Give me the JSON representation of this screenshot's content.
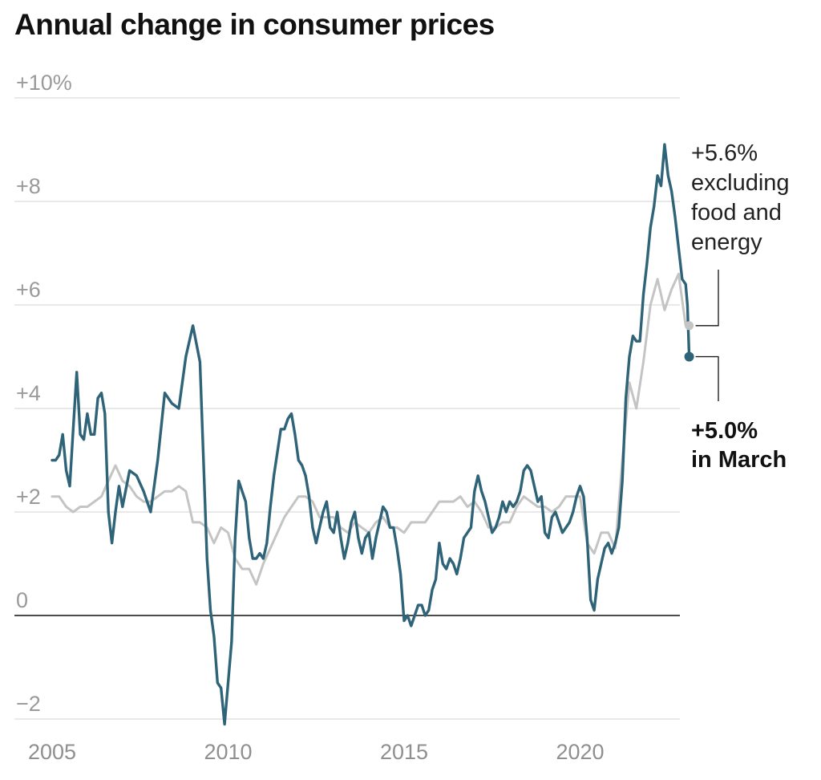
{
  "chart_data": {
    "type": "line",
    "title": "Annual change in consumer prices",
    "xlabel": "",
    "ylabel": "",
    "xlim": [
      2005.0,
      2023.25
    ],
    "ylim": [
      -2,
      10
    ],
    "grid": true,
    "y_ticks": [
      {
        "value": 10,
        "label": "+10%"
      },
      {
        "value": 8,
        "label": "+8"
      },
      {
        "value": 6,
        "label": "+6"
      },
      {
        "value": 4,
        "label": "+4"
      },
      {
        "value": 2,
        "label": "+2"
      },
      {
        "value": 0,
        "label": "0"
      },
      {
        "value": -2,
        "label": "−2"
      }
    ],
    "x_ticks": [
      {
        "value": 2005,
        "label": "2005"
      },
      {
        "value": 2010,
        "label": "2010"
      },
      {
        "value": 2015,
        "label": "2015"
      },
      {
        "value": 2020,
        "label": "2020"
      }
    ],
    "series": [
      {
        "name": "excluding food and energy",
        "color": "#c4c4c4",
        "end_label_value": "+5.6%",
        "end_label_text": [
          "excluding",
          "food and",
          "energy"
        ],
        "points": [
          [
            2005.0,
            2.3
          ],
          [
            2005.2,
            2.3
          ],
          [
            2005.4,
            2.1
          ],
          [
            2005.6,
            2.0
          ],
          [
            2005.8,
            2.1
          ],
          [
            2006.0,
            2.1
          ],
          [
            2006.2,
            2.2
          ],
          [
            2006.4,
            2.3
          ],
          [
            2006.6,
            2.6
          ],
          [
            2006.8,
            2.9
          ],
          [
            2007.0,
            2.6
          ],
          [
            2007.2,
            2.5
          ],
          [
            2007.4,
            2.3
          ],
          [
            2007.6,
            2.2
          ],
          [
            2007.8,
            2.2
          ],
          [
            2008.0,
            2.3
          ],
          [
            2008.2,
            2.4
          ],
          [
            2008.4,
            2.4
          ],
          [
            2008.6,
            2.5
          ],
          [
            2008.8,
            2.4
          ],
          [
            2009.0,
            1.8
          ],
          [
            2009.2,
            1.8
          ],
          [
            2009.4,
            1.7
          ],
          [
            2009.6,
            1.4
          ],
          [
            2009.8,
            1.7
          ],
          [
            2010.0,
            1.6
          ],
          [
            2010.2,
            1.1
          ],
          [
            2010.4,
            0.9
          ],
          [
            2010.6,
            0.9
          ],
          [
            2010.8,
            0.6
          ],
          [
            2011.0,
            1.0
          ],
          [
            2011.2,
            1.3
          ],
          [
            2011.4,
            1.6
          ],
          [
            2011.6,
            1.9
          ],
          [
            2011.8,
            2.1
          ],
          [
            2012.0,
            2.3
          ],
          [
            2012.2,
            2.3
          ],
          [
            2012.4,
            2.2
          ],
          [
            2012.6,
            1.9
          ],
          [
            2012.8,
            1.9
          ],
          [
            2013.0,
            1.9
          ],
          [
            2013.2,
            1.7
          ],
          [
            2013.4,
            1.6
          ],
          [
            2013.6,
            1.8
          ],
          [
            2013.8,
            1.7
          ],
          [
            2014.0,
            1.6
          ],
          [
            2014.2,
            1.8
          ],
          [
            2014.4,
            1.9
          ],
          [
            2014.6,
            1.7
          ],
          [
            2014.8,
            1.7
          ],
          [
            2015.0,
            1.6
          ],
          [
            2015.2,
            1.8
          ],
          [
            2015.4,
            1.8
          ],
          [
            2015.6,
            1.8
          ],
          [
            2015.8,
            2.0
          ],
          [
            2016.0,
            2.2
          ],
          [
            2016.2,
            2.2
          ],
          [
            2016.4,
            2.2
          ],
          [
            2016.6,
            2.3
          ],
          [
            2016.8,
            2.1
          ],
          [
            2017.0,
            2.2
          ],
          [
            2017.2,
            2.0
          ],
          [
            2017.4,
            1.7
          ],
          [
            2017.6,
            1.7
          ],
          [
            2017.8,
            1.8
          ],
          [
            2018.0,
            1.8
          ],
          [
            2018.2,
            2.1
          ],
          [
            2018.4,
            2.3
          ],
          [
            2018.6,
            2.2
          ],
          [
            2018.8,
            2.1
          ],
          [
            2019.0,
            2.1
          ],
          [
            2019.2,
            2.0
          ],
          [
            2019.4,
            2.1
          ],
          [
            2019.6,
            2.3
          ],
          [
            2019.8,
            2.3
          ],
          [
            2020.0,
            2.3
          ],
          [
            2020.2,
            1.4
          ],
          [
            2020.4,
            1.2
          ],
          [
            2020.6,
            1.6
          ],
          [
            2020.8,
            1.6
          ],
          [
            2021.0,
            1.3
          ],
          [
            2021.2,
            3.0
          ],
          [
            2021.4,
            4.5
          ],
          [
            2021.6,
            4.0
          ],
          [
            2021.8,
            4.9
          ],
          [
            2022.0,
            6.0
          ],
          [
            2022.2,
            6.5
          ],
          [
            2022.4,
            5.9
          ],
          [
            2022.6,
            6.3
          ],
          [
            2022.8,
            6.6
          ],
          [
            2023.0,
            5.6
          ],
          [
            2023.1,
            5.6
          ]
        ]
      },
      {
        "name": "in March",
        "color": "#2e6378",
        "end_label_value": "+5.0%",
        "end_label_text": [
          "in March"
        ],
        "points": [
          [
            2005.0,
            3.0
          ],
          [
            2005.1,
            3.0
          ],
          [
            2005.2,
            3.1
          ],
          [
            2005.3,
            3.5
          ],
          [
            2005.4,
            2.8
          ],
          [
            2005.5,
            2.5
          ],
          [
            2005.6,
            3.6
          ],
          [
            2005.7,
            4.7
          ],
          [
            2005.8,
            3.5
          ],
          [
            2005.9,
            3.4
          ],
          [
            2006.0,
            3.9
          ],
          [
            2006.1,
            3.5
          ],
          [
            2006.2,
            3.5
          ],
          [
            2006.3,
            4.2
          ],
          [
            2006.4,
            4.3
          ],
          [
            2006.5,
            3.9
          ],
          [
            2006.6,
            2.0
          ],
          [
            2006.7,
            1.4
          ],
          [
            2006.8,
            2.0
          ],
          [
            2006.9,
            2.5
          ],
          [
            2007.0,
            2.1
          ],
          [
            2007.2,
            2.8
          ],
          [
            2007.4,
            2.7
          ],
          [
            2007.6,
            2.4
          ],
          [
            2007.8,
            2.0
          ],
          [
            2008.0,
            3.0
          ],
          [
            2008.2,
            4.3
          ],
          [
            2008.4,
            4.1
          ],
          [
            2008.6,
            4.0
          ],
          [
            2008.8,
            5.0
          ],
          [
            2009.0,
            5.6
          ],
          [
            2009.2,
            4.9
          ],
          [
            2009.4,
            1.1
          ],
          [
            2009.5,
            0.1
          ],
          [
            2009.6,
            -0.4
          ],
          [
            2009.7,
            -1.3
          ],
          [
            2009.8,
            -1.4
          ],
          [
            2009.9,
            -2.1
          ],
          [
            2010.0,
            -1.3
          ],
          [
            2010.1,
            -0.5
          ],
          [
            2010.2,
            1.5
          ],
          [
            2010.3,
            2.6
          ],
          [
            2010.5,
            2.2
          ],
          [
            2010.6,
            1.5
          ],
          [
            2010.7,
            1.1
          ],
          [
            2010.8,
            1.1
          ],
          [
            2010.9,
            1.2
          ],
          [
            2011.0,
            1.1
          ],
          [
            2011.1,
            1.4
          ],
          [
            2011.2,
            2.1
          ],
          [
            2011.3,
            2.7
          ],
          [
            2011.5,
            3.6
          ],
          [
            2011.6,
            3.6
          ],
          [
            2011.7,
            3.8
          ],
          [
            2011.8,
            3.9
          ],
          [
            2011.9,
            3.5
          ],
          [
            2012.0,
            3.0
          ],
          [
            2012.1,
            2.9
          ],
          [
            2012.2,
            2.7
          ],
          [
            2012.3,
            2.3
          ],
          [
            2012.4,
            1.7
          ],
          [
            2012.5,
            1.4
          ],
          [
            2012.6,
            1.7
          ],
          [
            2012.7,
            2.0
          ],
          [
            2012.8,
            2.2
          ],
          [
            2012.9,
            1.7
          ],
          [
            2013.0,
            1.6
          ],
          [
            2013.1,
            2.0
          ],
          [
            2013.2,
            1.5
          ],
          [
            2013.3,
            1.1
          ],
          [
            2013.4,
            1.4
          ],
          [
            2013.5,
            1.8
          ],
          [
            2013.6,
            2.0
          ],
          [
            2013.7,
            1.5
          ],
          [
            2013.8,
            1.2
          ],
          [
            2013.9,
            1.5
          ],
          [
            2014.0,
            1.6
          ],
          [
            2014.1,
            1.1
          ],
          [
            2014.2,
            1.5
          ],
          [
            2014.3,
            1.8
          ],
          [
            2014.4,
            2.1
          ],
          [
            2014.5,
            2.0
          ],
          [
            2014.6,
            1.7
          ],
          [
            2014.7,
            1.7
          ],
          [
            2014.8,
            1.3
          ],
          [
            2014.9,
            0.8
          ],
          [
            2015.0,
            -0.1
          ],
          [
            2015.1,
            0.0
          ],
          [
            2015.2,
            -0.2
          ],
          [
            2015.3,
            0.0
          ],
          [
            2015.4,
            0.2
          ],
          [
            2015.5,
            0.2
          ],
          [
            2015.6,
            0.0
          ],
          [
            2015.7,
            0.1
          ],
          [
            2015.8,
            0.5
          ],
          [
            2015.9,
            0.7
          ],
          [
            2016.0,
            1.4
          ],
          [
            2016.1,
            1.0
          ],
          [
            2016.2,
            0.9
          ],
          [
            2016.3,
            1.1
          ],
          [
            2016.4,
            1.0
          ],
          [
            2016.5,
            0.8
          ],
          [
            2016.6,
            1.1
          ],
          [
            2016.7,
            1.5
          ],
          [
            2016.8,
            1.6
          ],
          [
            2016.9,
            1.7
          ],
          [
            2017.0,
            2.4
          ],
          [
            2017.1,
            2.7
          ],
          [
            2017.2,
            2.4
          ],
          [
            2017.3,
            2.2
          ],
          [
            2017.4,
            1.9
          ],
          [
            2017.5,
            1.6
          ],
          [
            2017.6,
            1.7
          ],
          [
            2017.7,
            1.9
          ],
          [
            2017.8,
            2.2
          ],
          [
            2017.9,
            2.0
          ],
          [
            2018.0,
            2.2
          ],
          [
            2018.1,
            2.1
          ],
          [
            2018.2,
            2.2
          ],
          [
            2018.3,
            2.4
          ],
          [
            2018.4,
            2.8
          ],
          [
            2018.5,
            2.9
          ],
          [
            2018.6,
            2.8
          ],
          [
            2018.7,
            2.5
          ],
          [
            2018.8,
            2.2
          ],
          [
            2018.9,
            2.3
          ],
          [
            2019.0,
            1.6
          ],
          [
            2019.1,
            1.5
          ],
          [
            2019.2,
            1.9
          ],
          [
            2019.3,
            2.0
          ],
          [
            2019.4,
            1.8
          ],
          [
            2019.5,
            1.6
          ],
          [
            2019.6,
            1.7
          ],
          [
            2019.7,
            1.8
          ],
          [
            2019.8,
            2.0
          ],
          [
            2019.9,
            2.3
          ],
          [
            2020.0,
            2.5
          ],
          [
            2020.1,
            2.3
          ],
          [
            2020.2,
            1.5
          ],
          [
            2020.3,
            0.3
          ],
          [
            2020.4,
            0.1
          ],
          [
            2020.5,
            0.7
          ],
          [
            2020.6,
            1.0
          ],
          [
            2020.7,
            1.3
          ],
          [
            2020.8,
            1.4
          ],
          [
            2020.9,
            1.2
          ],
          [
            2021.0,
            1.4
          ],
          [
            2021.1,
            1.7
          ],
          [
            2021.2,
            2.6
          ],
          [
            2021.3,
            4.2
          ],
          [
            2021.4,
            5.0
          ],
          [
            2021.5,
            5.4
          ],
          [
            2021.6,
            5.3
          ],
          [
            2021.7,
            5.3
          ],
          [
            2021.8,
            6.2
          ],
          [
            2021.9,
            6.8
          ],
          [
            2022.0,
            7.5
          ],
          [
            2022.1,
            7.9
          ],
          [
            2022.2,
            8.5
          ],
          [
            2022.3,
            8.3
          ],
          [
            2022.4,
            9.1
          ],
          [
            2022.5,
            8.5
          ],
          [
            2022.6,
            8.2
          ],
          [
            2022.7,
            7.7
          ],
          [
            2022.8,
            7.1
          ],
          [
            2022.9,
            6.5
          ],
          [
            2023.0,
            6.4
          ],
          [
            2023.05,
            6.0
          ],
          [
            2023.1,
            5.0
          ]
        ]
      }
    ]
  }
}
